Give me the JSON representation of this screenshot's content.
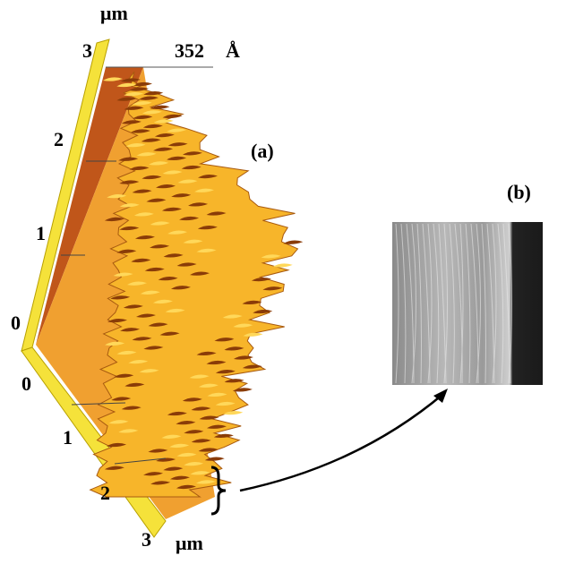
{
  "panel_a": {
    "label": "(a)",
    "top_unit": "μm",
    "height_value": "352",
    "height_unit": "Å",
    "vertical_axis_labels": [
      "3",
      "2",
      "1",
      "0"
    ],
    "horizontal_axis_labels": [
      "0",
      "1",
      "2",
      "3"
    ],
    "bottom_unit": "μm"
  },
  "panel_b": {
    "label": "(b)"
  }
}
